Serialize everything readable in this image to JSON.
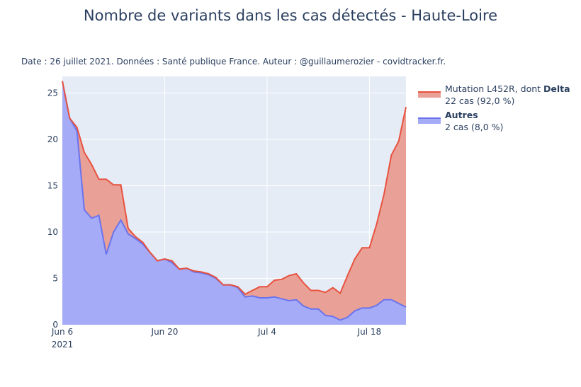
{
  "title": "Nombre de variants dans les cas détectés - Haute-Loire",
  "subtitle": "Date : 26 juillet 2021. Données : Santé publique France. Auteur : @guillaumerozier - covidtracker.fr.",
  "colors": {
    "delta_fill": "#e9a197",
    "delta_line": "#e8523f",
    "autres_fill": "#a5abf6",
    "autres_line": "#6a73ee",
    "plot_bg": "#e5ecf6"
  },
  "chart_data": {
    "type": "area",
    "stacked": true,
    "grid": true,
    "legend_position": "top-right",
    "x_start": "2021-06-06",
    "x_end": "2021-07-23",
    "ylim": [
      0,
      26.8
    ],
    "x_ticks": [
      {
        "date": "2021-06-06",
        "label": "Jun 6",
        "label2": "2021"
      },
      {
        "date": "2021-06-20",
        "label": "Jun 20",
        "label2": ""
      },
      {
        "date": "2021-07-04",
        "label": "Jul 4",
        "label2": ""
      },
      {
        "date": "2021-07-18",
        "label": "Jul 18",
        "label2": ""
      }
    ],
    "y_ticks": [
      0,
      5,
      10,
      15,
      20,
      25
    ],
    "x": [
      "2021-06-06",
      "2021-06-07",
      "2021-06-08",
      "2021-06-09",
      "2021-06-10",
      "2021-06-11",
      "2021-06-12",
      "2021-06-13",
      "2021-06-14",
      "2021-06-15",
      "2021-06-16",
      "2021-06-17",
      "2021-06-18",
      "2021-06-19",
      "2021-06-20",
      "2021-06-21",
      "2021-06-22",
      "2021-06-23",
      "2021-06-24",
      "2021-06-25",
      "2021-06-26",
      "2021-06-27",
      "2021-06-28",
      "2021-06-29",
      "2021-06-30",
      "2021-07-01",
      "2021-07-02",
      "2021-07-03",
      "2021-07-04",
      "2021-07-05",
      "2021-07-06",
      "2021-07-07",
      "2021-07-08",
      "2021-07-09",
      "2021-07-10",
      "2021-07-11",
      "2021-07-12",
      "2021-07-13",
      "2021-07-14",
      "2021-07-15",
      "2021-07-16",
      "2021-07-17",
      "2021-07-18",
      "2021-07-19",
      "2021-07-20",
      "2021-07-21",
      "2021-07-22",
      "2021-07-23"
    ],
    "series": [
      {
        "name": "Autres",
        "legend_name": "Autres",
        "legend_detail": "2 cas (8,0 %)",
        "values": [
          26.3,
          22.3,
          20.9,
          12.4,
          11.5,
          11.8,
          7.6,
          10.0,
          11.3,
          9.8,
          9.3,
          8.7,
          7.8,
          6.9,
          7.1,
          6.7,
          6.0,
          6.1,
          5.7,
          5.6,
          5.4,
          5.0,
          4.3,
          4.3,
          4.0,
          3.0,
          3.1,
          2.9,
          2.9,
          3.0,
          2.8,
          2.6,
          2.7,
          2.0,
          1.7,
          1.7,
          1.0,
          0.9,
          0.5,
          0.8,
          1.5,
          1.8,
          1.8,
          2.1,
          2.7,
          2.7,
          2.3,
          1.9
        ]
      },
      {
        "name": "Mutation L452R, dont Delta",
        "legend_name": "Mutation L452R, dont ",
        "legend_bold": "Delta",
        "legend_detail": "22 cas (92,0 %)",
        "values": [
          0.0,
          0.0,
          0.4,
          6.2,
          5.8,
          3.9,
          8.1,
          5.1,
          3.8,
          0.6,
          0.2,
          0.2,
          0.0,
          0.0,
          0.0,
          0.2,
          0.0,
          0.0,
          0.1,
          0.1,
          0.1,
          0.1,
          0.0,
          0.0,
          0.1,
          0.3,
          0.6,
          1.2,
          1.2,
          1.8,
          2.1,
          2.7,
          2.8,
          2.5,
          2.0,
          2.0,
          2.5,
          3.1,
          2.9,
          4.5,
          5.6,
          6.5,
          6.5,
          8.8,
          11.4,
          15.6,
          17.5,
          21.6
        ]
      }
    ]
  }
}
